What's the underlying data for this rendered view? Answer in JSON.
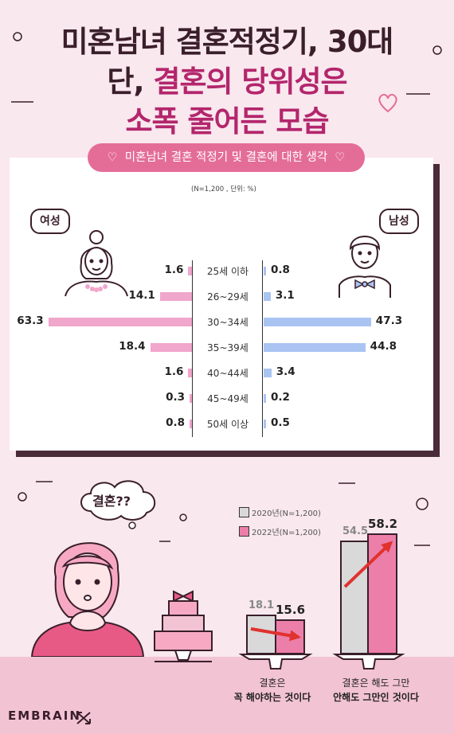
{
  "title": {
    "line1": "미혼남녀 결혼적정기, 30대",
    "line2_plain": "단, ",
    "line2_accent": "결혼의 당위성은",
    "line3": "소폭 줄어든 모습"
  },
  "colors": {
    "female_bar": "#f1a6cc",
    "male_bar": "#a9c4f2",
    "pill": "#e46d97",
    "col_2020": "#d9d9d9",
    "col_2022": "#ec7fa9",
    "arrow": "#e0322e",
    "dark": "#3a1f2b"
  },
  "chart_data": [
    {
      "type": "bar",
      "orientation": "horizontal-diverging",
      "title": "미혼남녀 결혼 적정기 및 결혼에 대한 생각",
      "note": "(N=1,200 , 단위: %)",
      "categories": [
        "25세 이하",
        "26~29세",
        "30~34세",
        "35~39세",
        "40~44세",
        "45~49세",
        "50세 이상"
      ],
      "series": [
        {
          "name": "여성",
          "values": [
            1.6,
            14.1,
            63.3,
            18.4,
            1.6,
            0.3,
            0.8
          ]
        },
        {
          "name": "남성",
          "values": [
            0.8,
            3.1,
            47.3,
            44.8,
            3.4,
            0.2,
            0.5
          ]
        }
      ],
      "decoration_icons": [
        "female-person-icon",
        "male-person-icon"
      ]
    },
    {
      "type": "bar",
      "categories": [
        "결혼은 꼭 해야하는 것이다",
        "결혼은 해도 그만 안해도 그만인 것이다"
      ],
      "category_lines": [
        [
          "결혼은",
          "꼭 해야하는 것이다"
        ],
        [
          "결혼은 해도 그만",
          "안해도 그만인 것이다"
        ]
      ],
      "series": [
        {
          "name": "2020년(N=1,200)",
          "values": [
            18.1,
            54.5
          ]
        },
        {
          "name": "2022년(N=1,200)",
          "values": [
            15.6,
            58.2
          ]
        }
      ],
      "trend_arrows": [
        "down",
        "up"
      ]
    }
  ],
  "illustration": {
    "thought_bubble": "결혼??",
    "icons": [
      "woman-thinking-icon",
      "wedding-cake-icon",
      "heart-icon",
      "ring-icon"
    ]
  },
  "brand": {
    "logo": "EMBRAIN"
  }
}
